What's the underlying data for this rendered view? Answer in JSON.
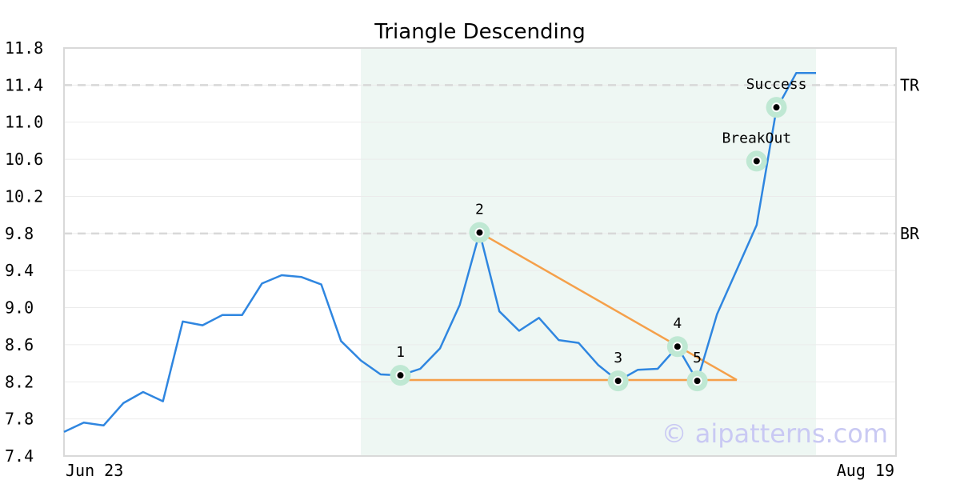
{
  "chart_data": {
    "type": "line",
    "title": "Triangle Descending",
    "ylim": [
      7.4,
      11.8
    ],
    "yticks": [
      "7.4",
      "7.8",
      "8.2",
      "8.6",
      "9.0",
      "9.4",
      "9.8",
      "10.2",
      "10.6",
      "11.0",
      "11.4",
      "11.8"
    ],
    "x_tick_labels": [
      {
        "index": 0,
        "label": "Jun 23"
      },
      {
        "index": 38,
        "label": "Aug 19"
      }
    ],
    "grid": true,
    "series": [
      {
        "values": [
          7.66,
          7.76,
          7.73,
          7.97,
          8.09,
          7.99,
          8.85,
          8.81,
          8.92,
          8.92,
          9.26,
          9.35,
          9.33,
          9.25,
          8.64,
          8.43,
          8.28,
          8.27,
          8.34,
          8.56,
          9.03,
          9.81,
          8.96,
          8.75,
          8.89,
          8.65,
          8.62,
          8.38,
          8.21,
          8.33,
          8.34,
          8.58,
          8.21,
          8.93,
          9.41,
          9.89,
          11.14,
          11.53,
          11.53
        ],
        "color": "#2f86e0"
      }
    ],
    "pattern_region": {
      "start_index": 15,
      "end_index": 38,
      "color": "#eef7f3"
    },
    "levels": [
      {
        "label": "TR",
        "value": 11.4
      },
      {
        "label": "BR",
        "value": 9.8
      }
    ],
    "points": [
      {
        "label": "1",
        "index": 17,
        "value": 8.27
      },
      {
        "label": "2",
        "index": 21,
        "value": 9.81
      },
      {
        "label": "3",
        "index": 28,
        "value": 8.21
      },
      {
        "label": "4",
        "index": 31,
        "value": 8.58
      },
      {
        "label": "5",
        "index": 32,
        "value": 8.21
      },
      {
        "label": "BreakOut",
        "index": 35.0,
        "value": 10.58
      },
      {
        "label": "Success",
        "index": 36.0,
        "value": 11.16
      }
    ],
    "triangle": {
      "color": "#f5a04a",
      "lines": [
        {
          "from": [
            17,
            8.22
          ],
          "to": [
            34,
            8.22
          ]
        },
        {
          "from": [
            21,
            9.81
          ],
          "to": [
            34,
            8.22
          ]
        }
      ]
    },
    "marker_halo_color": "#bfe8d3"
  },
  "watermark": "© aipatterns.com"
}
